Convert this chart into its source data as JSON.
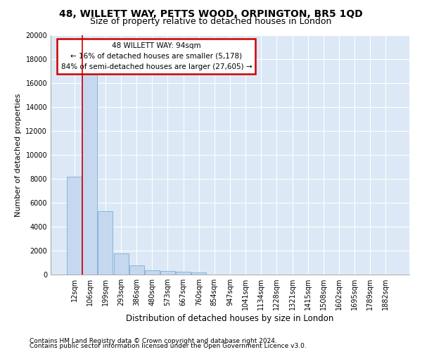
{
  "title1": "48, WILLETT WAY, PETTS WOOD, ORPINGTON, BR5 1QD",
  "title2": "Size of property relative to detached houses in London",
  "xlabel": "Distribution of detached houses by size in London",
  "ylabel": "Number of detached properties",
  "categories": [
    "12sqm",
    "106sqm",
    "199sqm",
    "293sqm",
    "386sqm",
    "480sqm",
    "573sqm",
    "667sqm",
    "760sqm",
    "854sqm",
    "947sqm",
    "1041sqm",
    "1134sqm",
    "1228sqm",
    "1321sqm",
    "1415sqm",
    "1508sqm",
    "1602sqm",
    "1695sqm",
    "1789sqm",
    "1882sqm"
  ],
  "values": [
    8150,
    16750,
    5300,
    1750,
    750,
    360,
    280,
    210,
    170,
    0,
    0,
    0,
    0,
    0,
    0,
    0,
    0,
    0,
    0,
    0,
    0
  ],
  "bar_color": "#c5d8f0",
  "bar_edge_color": "#7aadd4",
  "vline_color": "#cc0000",
  "annotation_text": "48 WILLETT WAY: 94sqm\n← 16% of detached houses are smaller (5,178)\n84% of semi-detached houses are larger (27,605) →",
  "annotation_box_color": "white",
  "annotation_box_edge": "#cc0000",
  "ylim": [
    0,
    20000
  ],
  "yticks": [
    0,
    2000,
    4000,
    6000,
    8000,
    10000,
    12000,
    14000,
    16000,
    18000,
    20000
  ],
  "background_color": "#dce8f5",
  "grid_color": "white",
  "footer1": "Contains HM Land Registry data © Crown copyright and database right 2024.",
  "footer2": "Contains public sector information licensed under the Open Government Licence v3.0.",
  "title1_fontsize": 10,
  "title2_fontsize": 9,
  "xlabel_fontsize": 8.5,
  "ylabel_fontsize": 8,
  "tick_fontsize": 7,
  "footer_fontsize": 6.5
}
